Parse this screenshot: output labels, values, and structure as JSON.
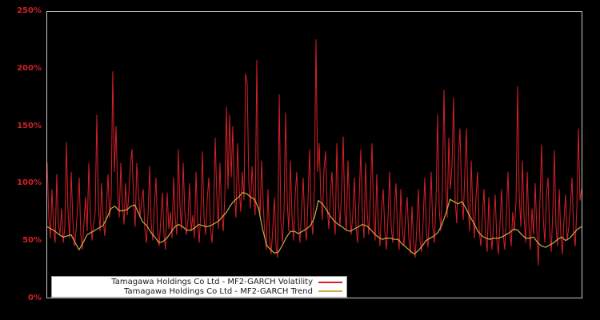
{
  "figure": {
    "background_color": "#000000"
  },
  "chart_data": {
    "type": "line",
    "title": "",
    "xlabel": "",
    "ylabel": "",
    "grid": false,
    "legend_position": "lower-left",
    "x_tick_labels_visible": false,
    "ylim": [
      0,
      250
    ],
    "y_unit": "percent",
    "axis": {
      "frame_color": "#c8c8c8",
      "tick_color": "#cf2127"
    },
    "yticks": [
      {
        "label": "0%",
        "value": 0
      },
      {
        "label": "50%",
        "value": 50
      },
      {
        "label": "100%",
        "value": 100
      },
      {
        "label": "150%",
        "value": 150
      },
      {
        "label": "200%",
        "value": 200
      },
      {
        "label": "250%",
        "value": 250
      }
    ],
    "series": [
      {
        "name": "Tamagawa Holdings Co Ltd - MF2-GARCH Volatility",
        "color": "#d62027",
        "stroke_width": 1,
        "values": [
          118,
          70,
          52,
          95,
          60,
          48,
          108,
          65,
          55,
          78,
          48,
          62,
          136,
          75,
          52,
          110,
          68,
          45,
          58,
          80,
          105,
          55,
          42,
          66,
          88,
          58,
          118,
          72,
          50,
          64,
          75,
          160,
          82,
          58,
          100,
          68,
          54,
          76,
          108,
          70,
          88,
          198,
          110,
          150,
          95,
          70,
          118,
          82,
          64,
          100,
          72,
          90,
          115,
          130,
          85,
          62,
          118,
          95,
          70,
          85,
          95,
          60,
          48,
          72,
          115,
          65,
          50,
          80,
          105,
          58,
          45,
          68,
          92,
          55,
          42,
          92,
          60,
          75,
          52,
          105,
          70,
          55,
          130,
          80,
          60,
          118,
          75,
          55,
          68,
          100,
          58,
          72,
          52,
          110,
          66,
          48,
          75,
          128,
          70,
          55,
          85,
          105,
          62,
          48,
          70,
          140,
          90,
          60,
          118,
          75,
          58,
          88,
          167,
          95,
          160,
          105,
          150,
          90,
          70,
          135,
          95,
          75,
          110,
          85,
          196,
          188,
          100,
          78,
          115,
          90,
          72,
          208,
          95,
          70,
          120,
          82,
          55,
          42,
          95,
          52,
          38,
          60,
          88,
          45,
          35,
          178,
          68,
          48,
          75,
          162,
          85,
          58,
          120,
          72,
          50,
          90,
          110,
          65,
          48,
          78,
          105,
          62,
          50,
          85,
          130,
          70,
          55,
          95,
          226,
          110,
          135,
          88,
          68,
          112,
          128,
          80,
          60,
          92,
          110,
          70,
          55,
          135,
          85,
          62,
          95,
          141,
          75,
          58,
          120,
          80,
          55,
          72,
          105,
          62,
          48,
          88,
          130,
          70,
          52,
          118,
          75,
          55,
          90,
          135,
          72,
          50,
          108,
          65,
          45,
          80,
          95,
          58,
          42,
          70,
          110,
          62,
          48,
          78,
          100,
          55,
          42,
          95,
          60,
          45,
          72,
          88,
          52,
          38,
          80,
          48,
          35,
          62,
          95,
          50,
          40,
          68,
          105,
          58,
          44,
          75,
          110,
          62,
          48,
          85,
          160,
          78,
          58,
          95,
          182,
          100,
          70,
          140,
          95,
          115,
          175,
          85,
          65,
          120,
          148,
          90,
          68,
          110,
          148,
          82,
          58,
          120,
          75,
          52,
          88,
          110,
          60,
          45,
          70,
          95,
          55,
          40,
          88,
          58,
          42,
          68,
          90,
          50,
          38,
          65,
          95,
          55,
          42,
          72,
          110,
          60,
          45,
          75,
          58,
          85,
          185,
          90,
          62,
          120,
          72,
          48,
          110,
          65,
          42,
          78,
          55,
          100,
          60,
          28,
          85,
          134,
          70,
          48,
          90,
          105,
          58,
          40,
          75,
          129,
          62,
          45,
          95,
          55,
          38,
          68,
          90,
          50,
          62,
          80,
          105,
          58,
          45,
          78,
          148,
          85,
          95
        ]
      },
      {
        "name": "Tamagawa Holdings Co Ltd - MF2-GARCH Trend",
        "color": "#ccad47",
        "stroke_width": 1.2,
        "values": [
          62,
          60,
          58,
          55,
          53,
          54,
          55,
          48,
          42,
          48,
          55,
          57,
          59,
          61,
          63,
          70,
          78,
          80,
          76,
          76,
          77,
          80,
          81,
          73,
          66,
          63,
          57,
          53,
          48,
          49,
          52,
          57,
          62,
          64,
          62,
          59,
          59,
          61,
          64,
          63,
          62,
          63,
          65,
          67,
          71,
          75,
          81,
          85,
          88,
          92,
          91,
          88,
          86,
          78,
          60,
          46,
          42,
          39,
          40,
          46,
          53,
          58,
          58,
          56,
          58,
          60,
          63,
          70,
          85,
          82,
          77,
          71,
          67,
          64,
          62,
          59,
          58,
          60,
          62,
          64,
          63,
          60,
          56,
          53,
          51,
          52,
          52,
          51,
          51,
          47,
          44,
          41,
          38,
          41,
          45,
          50,
          52,
          54,
          57,
          64,
          74,
          86,
          84,
          82,
          84,
          78,
          71,
          65,
          58,
          54,
          52,
          51,
          52,
          52,
          53,
          55,
          57,
          60,
          59,
          55,
          52,
          52,
          53,
          48,
          45,
          44,
          46,
          48,
          51,
          53,
          50,
          52,
          56,
          60,
          62
        ]
      }
    ]
  }
}
